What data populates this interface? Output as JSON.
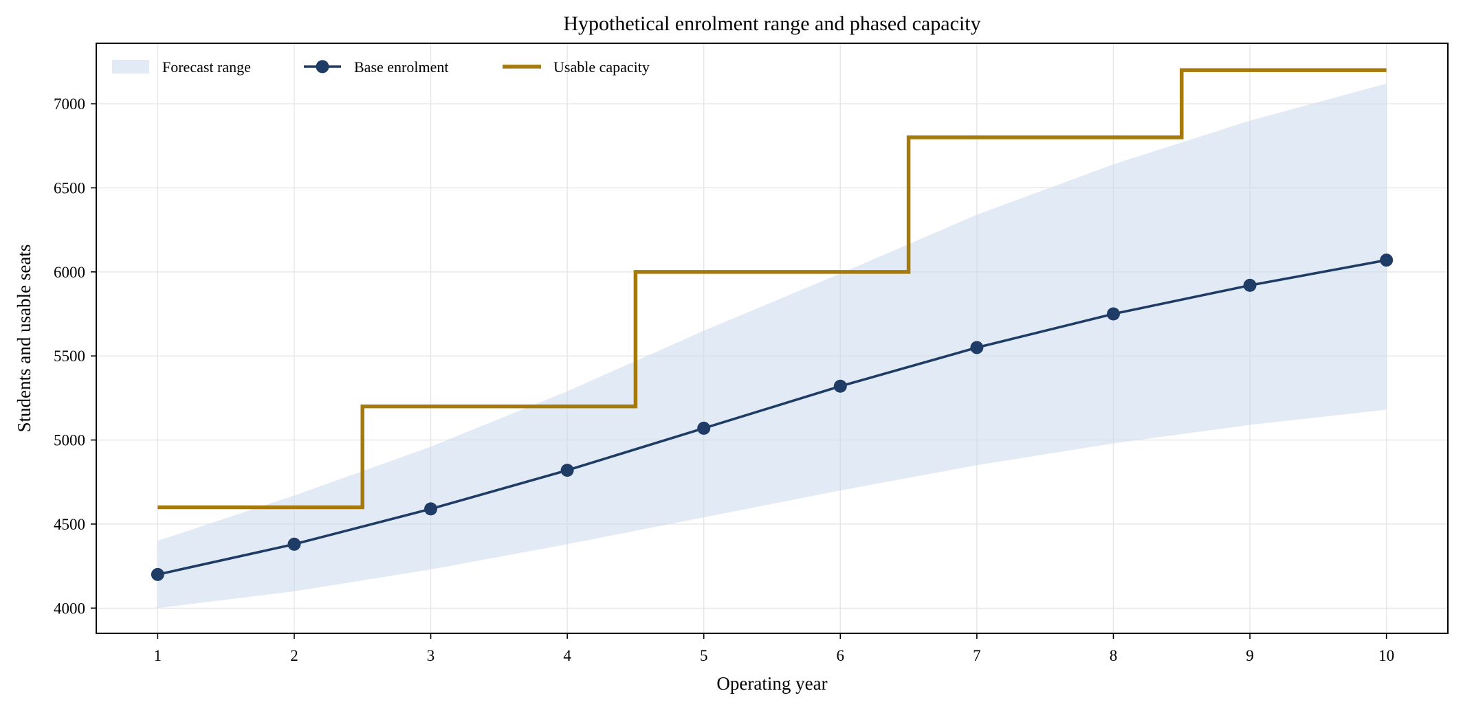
{
  "chart_data": {
    "type": "line",
    "title": "Hypothetical enrolment range and phased capacity",
    "xlabel": "Operating year",
    "ylabel": "Students and usable seats",
    "x": [
      1,
      2,
      3,
      4,
      5,
      6,
      7,
      8,
      9,
      10
    ],
    "x_ticks": [
      "1",
      "2",
      "3",
      "4",
      "5",
      "6",
      "7",
      "8",
      "9",
      "10"
    ],
    "y_ticks": [
      "4000",
      "4500",
      "5000",
      "5500",
      "6000",
      "6500",
      "7000"
    ],
    "xlim": [
      0.55,
      10.45
    ],
    "ylim": [
      3850,
      7360
    ],
    "grid": true,
    "legend_position": "top-left",
    "series": [
      {
        "name": "Forecast range",
        "kind": "band",
        "color": "#c5d5eb",
        "lower": [
          4000,
          4100,
          4230,
          4380,
          4540,
          4700,
          4850,
          4980,
          5090,
          5180
        ],
        "upper": [
          4400,
          4670,
          4960,
          5290,
          5650,
          5990,
          6340,
          6640,
          6900,
          7120
        ]
      },
      {
        "name": "Base enrolment",
        "kind": "line_markers",
        "color": "#1f3c66",
        "values": [
          4200,
          4380,
          4590,
          4820,
          5070,
          5320,
          5550,
          5750,
          5920,
          6070
        ]
      },
      {
        "name": "Usable capacity",
        "kind": "step",
        "color": "#a57a0c",
        "values": [
          4600,
          4600,
          5200,
          5200,
          6000,
          6000,
          6800,
          6800,
          7200,
          7200
        ]
      }
    ]
  }
}
